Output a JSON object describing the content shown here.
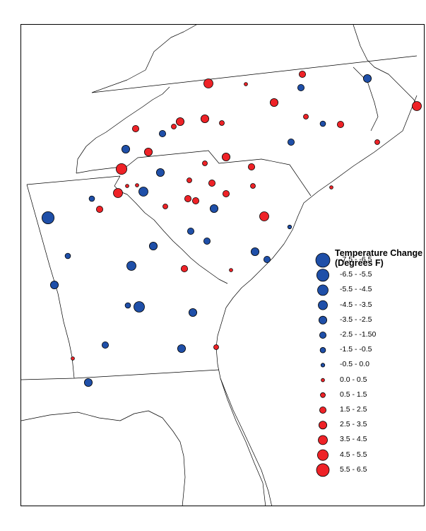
{
  "legend": {
    "title_line1": "Temperature Change",
    "title_line2": "(Degrees F)"
  },
  "colors": {
    "cooling": "#1f4fa8",
    "warming": "#ee2227",
    "outline": "#000000",
    "background": "#ffffff"
  },
  "legend_classes": [
    {
      "label": "-7.5 - -6.5",
      "color": "cooling"
    },
    {
      "label": "-6.5 - -5.5",
      "color": "cooling"
    },
    {
      "label": "-5.5 - -4.5",
      "color": "cooling"
    },
    {
      "label": "-4.5 - -3.5",
      "color": "cooling"
    },
    {
      "label": "-3.5 - -2.5",
      "color": "cooling"
    },
    {
      "label": "-2.5 - -1.50",
      "color": "cooling"
    },
    {
      "label": "-1.5 - -0.5",
      "color": "cooling"
    },
    {
      "label": "-0.5 - 0.0",
      "color": "cooling"
    },
    {
      "label": "0.0 - 0.5",
      "color": "warming"
    },
    {
      "label": "0.5 - 1.5",
      "color": "warming"
    },
    {
      "label": "1.5 - 2.5",
      "color": "warming"
    },
    {
      "label": "2.5 - 3.5",
      "color": "warming"
    },
    {
      "label": "3.5 - 4.5",
      "color": "warming"
    },
    {
      "label": "4.5 - 5.5",
      "color": "warming"
    },
    {
      "label": "5.5 - 6.5",
      "color": "warming"
    }
  ]
}
